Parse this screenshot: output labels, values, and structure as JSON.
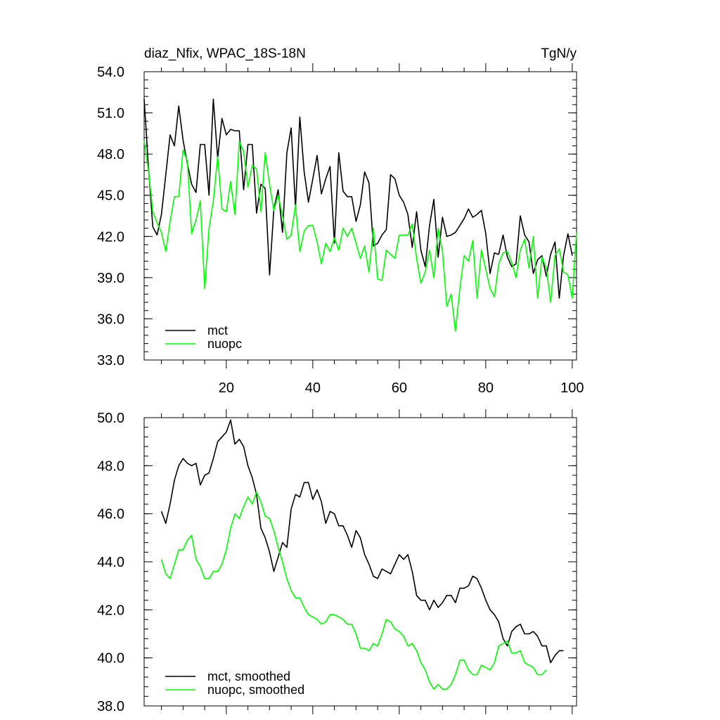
{
  "chart_data": [
    {
      "type": "line",
      "title": "diaz_Nfix, WPAC_18S-18N",
      "units": "TgN/y",
      "xlim": [
        1,
        101
      ],
      "ylim": [
        33,
        54
      ],
      "xticks": [
        20,
        40,
        60,
        80,
        100
      ],
      "xtick_labels": [
        "20",
        "40",
        "60",
        "80",
        "100"
      ],
      "yticks": [
        33,
        36,
        39,
        42,
        45,
        48,
        51,
        54
      ],
      "ytick_labels": [
        "33.0",
        "36.0",
        "39.0",
        "42.0",
        "45.0",
        "48.0",
        "51.0",
        "54.0"
      ],
      "legend": "bottom-left",
      "x_start": 1,
      "series": [
        {
          "name": "mct",
          "color": "#000000",
          "values": [
            52.0,
            47.0,
            42.7,
            42.1,
            43.6,
            46.5,
            49.4,
            48.6,
            51.5,
            49.0,
            47.3,
            45.8,
            45.2,
            48.7,
            48.7,
            45.0,
            52.0,
            47.7,
            50.6,
            49.4,
            49.8,
            49.7,
            49.7,
            45.4,
            48.7,
            48.7,
            43.7,
            45.8,
            45.5,
            39.2,
            44.0,
            45.4,
            42.3,
            48.1,
            49.9,
            44.1,
            50.7,
            46.7,
            44.5,
            46.2,
            47.9,
            45.1,
            46.2,
            47.1,
            41.5,
            48.1,
            45.3,
            44.9,
            44.9,
            43.1,
            44.3,
            46.7,
            45.9,
            41.3,
            41.5,
            42.1,
            42.5,
            46.5,
            46.2,
            45.0,
            44.5,
            43.6,
            41.2,
            43.8,
            41.0,
            39.8,
            42.8,
            44.7,
            40.5,
            43.4,
            42.0,
            42.1,
            42.3,
            42.8,
            43.3,
            44.0,
            43.4,
            43.6,
            43.9,
            42.2,
            39.3,
            40.8,
            40.7,
            42.1,
            40.5,
            39.8,
            40.0,
            43.5,
            42.1,
            41.6,
            39.3,
            40.3,
            40.6,
            39.1,
            40.7,
            41.6,
            37.5,
            40.6,
            42.2,
            40.6
          ]
        },
        {
          "name": "nuopc",
          "color": "#00ff00",
          "values": [
            49.0,
            46.8,
            43.8,
            43.0,
            42.3,
            40.9,
            43.1,
            44.9,
            44.9,
            48.3,
            47.5,
            42.2,
            43.2,
            44.6,
            38.2,
            42.6,
            44.6,
            47.8,
            44.0,
            43.8,
            46.0,
            43.6,
            48.9,
            48.2,
            45.6,
            47.2,
            46.9,
            43.8,
            48.1,
            45.8,
            43.9,
            45.0,
            43.5,
            41.8,
            42.1,
            44.3,
            40.9,
            42.4,
            42.8,
            42.8,
            41.6,
            40.0,
            41.5,
            40.9,
            41.9,
            41.0,
            42.6,
            42.0,
            42.6,
            41.5,
            40.4,
            41.3,
            39.4,
            42.6,
            38.9,
            38.8,
            41.0,
            40.7,
            40.4,
            42.1,
            42.1,
            42.1,
            42.9,
            40.4,
            38.6,
            39.4,
            41.0,
            39.0,
            42.6,
            40.9,
            36.9,
            37.8,
            35.1,
            38.2,
            40.6,
            40.2,
            41.7,
            37.5,
            41.0,
            39.6,
            38.2,
            37.6,
            40.0,
            40.8,
            40.9,
            40.1,
            39.0,
            41.0,
            41.8,
            39.7,
            42.0,
            37.5,
            40.5,
            39.7,
            37.2,
            40.6,
            41.1,
            39.4,
            39.2,
            37.5,
            42.3
          ]
        }
      ]
    },
    {
      "type": "line",
      "title": "",
      "xlim": [
        1,
        101
      ],
      "ylim": [
        38,
        50
      ],
      "xticks": [
        20,
        40,
        60,
        80,
        100
      ],
      "xtick_labels": [
        "",
        "",
        "",
        "",
        ""
      ],
      "yticks": [
        38,
        40,
        42,
        44,
        46,
        48,
        50
      ],
      "ytick_labels": [
        "38.0",
        "40.0",
        "42.0",
        "44.0",
        "46.0",
        "48.0",
        "50.0"
      ],
      "legend": "bottom-left",
      "x_start": 5,
      "series": [
        {
          "name": "mct, smoothed",
          "color": "#000000",
          "values": [
            46.1,
            45.6,
            46.4,
            47.4,
            48.0,
            48.3,
            48.1,
            48.0,
            48.1,
            47.2,
            47.6,
            47.7,
            48.3,
            49.0,
            49.2,
            49.4,
            49.9,
            48.9,
            49.1,
            48.8,
            48.0,
            47.5,
            46.8,
            45.4,
            45.0,
            44.4,
            43.6,
            44.2,
            44.8,
            44.6,
            46.2,
            46.8,
            46.7,
            47.3,
            47.3,
            46.6,
            47.0,
            46.5,
            45.6,
            46.1,
            46.0,
            45.5,
            45.5,
            45.1,
            44.6,
            45.3,
            45.0,
            44.3,
            43.9,
            43.4,
            43.3,
            43.7,
            43.6,
            43.5,
            43.9,
            44.3,
            44.1,
            44.3,
            43.6,
            42.6,
            42.4,
            42.4,
            42.0,
            42.4,
            42.1,
            42.3,
            42.6,
            42.6,
            42.3,
            42.9,
            42.9,
            43.0,
            43.4,
            43.3,
            42.9,
            42.4,
            42.0,
            41.8,
            41.5,
            40.8,
            40.5,
            41.1,
            41.3,
            41.4,
            41.0,
            41.0,
            41.1,
            40.9,
            40.5,
            40.5,
            39.8,
            40.1,
            40.3,
            40.3
          ]
        },
        {
          "name": "nuopc, smoothed",
          "color": "#00ff00",
          "values": [
            44.1,
            43.5,
            43.3,
            43.9,
            44.5,
            44.5,
            44.9,
            45.1,
            44.1,
            43.8,
            43.3,
            43.3,
            43.6,
            43.6,
            43.9,
            44.5,
            45.4,
            46.0,
            45.8,
            46.3,
            46.7,
            46.4,
            46.9,
            46.5,
            45.9,
            45.8,
            45.3,
            44.6,
            44.0,
            43.3,
            42.8,
            42.5,
            42.5,
            42.1,
            41.8,
            41.7,
            41.6,
            41.4,
            41.5,
            41.8,
            41.8,
            41.7,
            41.6,
            41.4,
            41.4,
            41.0,
            40.4,
            40.4,
            40.3,
            40.6,
            40.5,
            41.0,
            41.6,
            41.5,
            41.2,
            41.1,
            40.9,
            40.5,
            40.6,
            40.3,
            39.8,
            39.5,
            39.0,
            38.7,
            38.9,
            38.7,
            38.7,
            38.9,
            39.3,
            39.9,
            39.9,
            39.5,
            39.3,
            39.3,
            39.7,
            39.6,
            39.5,
            39.8,
            40.5,
            40.6,
            40.7,
            40.2,
            40.2,
            40.3,
            39.8,
            39.7,
            39.6,
            39.3,
            39.3,
            39.5
          ]
        }
      ]
    }
  ]
}
